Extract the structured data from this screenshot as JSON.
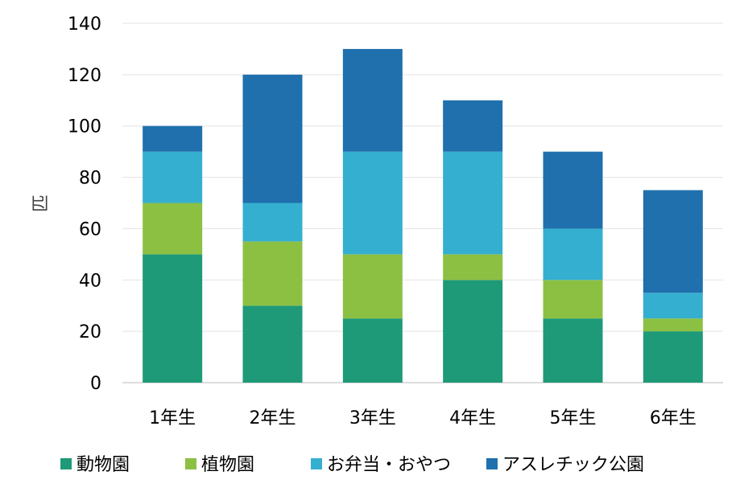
{
  "chart_data": {
    "type": "bar",
    "stacked": true,
    "title": "",
    "xlabel": "",
    "ylabel": "匹",
    "ylim": [
      0,
      140
    ],
    "yticks": [
      0,
      20,
      40,
      60,
      80,
      100,
      120,
      140
    ],
    "grid": true,
    "legend_position": "bottom",
    "categories": [
      "1年生",
      "2年生",
      "3年生",
      "4年生",
      "5年生",
      "6年生"
    ],
    "series": [
      {
        "name": "動物園",
        "color": "#1e9a78",
        "values": [
          50,
          30,
          25,
          40,
          25,
          20
        ]
      },
      {
        "name": "植物園",
        "color": "#8cc043",
        "values": [
          20,
          25,
          25,
          10,
          15,
          5
        ]
      },
      {
        "name": "お弁当・おやつ",
        "color": "#35afd0",
        "values": [
          20,
          15,
          40,
          40,
          20,
          10
        ]
      },
      {
        "name": "アスレチック公園",
        "color": "#1f70ad",
        "values": [
          10,
          50,
          40,
          20,
          30,
          40
        ]
      }
    ]
  }
}
